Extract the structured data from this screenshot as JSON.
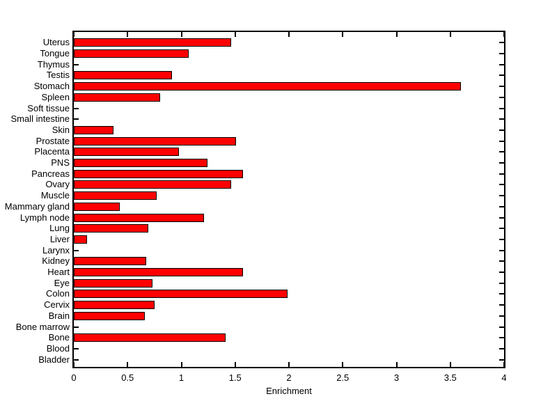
{
  "chart_data": {
    "type": "bar",
    "orientation": "horizontal",
    "title": "",
    "xlabel": "Enrichment",
    "ylabel": "",
    "xlim": [
      0,
      4
    ],
    "xticks": [
      0,
      0.5,
      1,
      1.5,
      2,
      2.5,
      3,
      3.5,
      4
    ],
    "xtick_labels": [
      "0",
      "0.5",
      "1",
      "1.5",
      "2",
      "2.5",
      "3",
      "3.5",
      "4"
    ],
    "grid": false,
    "legend": "none",
    "axis_box": true,
    "tick_direction": "in",
    "bar_color": "#ff0000",
    "bar_edge_color": "#000000",
    "background_color": "#ffffff",
    "categories": [
      "Uterus",
      "Tongue",
      "Thymus",
      "Testis",
      "Stomach",
      "Spleen",
      "Soft tissue",
      "Small intestine",
      "Skin",
      "Prostate",
      "Placenta",
      "PNS",
      "Pancreas",
      "Ovary",
      "Muscle",
      "Mammary gland",
      "Lymph node",
      "Lung",
      "Liver",
      "Larynx",
      "Kidney",
      "Heart",
      "Eye",
      "Colon",
      "Cervix",
      "Brain",
      "Bone marrow",
      "Bone",
      "Blood",
      "Bladder"
    ],
    "values": [
      1.46,
      1.07,
      0,
      0.91,
      3.6,
      0.8,
      0,
      0,
      0.37,
      1.51,
      0.98,
      1.24,
      1.57,
      1.46,
      0.77,
      0.43,
      1.21,
      0.69,
      0.12,
      0,
      0.67,
      1.57,
      0.73,
      1.99,
      0.75,
      0.66,
      0,
      1.41,
      0,
      0
    ],
    "category_order_note": "listed top to bottom as displayed"
  }
}
